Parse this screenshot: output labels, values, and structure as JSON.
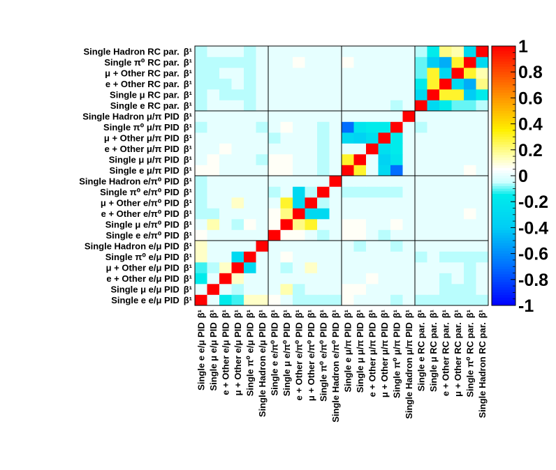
{
  "chart_data": {
    "type": "heatmap",
    "title": "",
    "xlabel": "",
    "ylabel": "",
    "zlim": [
      -1,
      1
    ],
    "colorbar_ticks": [
      "1",
      "0.8",
      "0.6",
      "0.4",
      "0.2",
      "0",
      "-0.2",
      "-0.4",
      "-0.6",
      "-0.8",
      "-1"
    ],
    "colorbar_tick_values": [
      1,
      0.8,
      0.6,
      0.4,
      0.2,
      0,
      -0.2,
      -0.4,
      -0.6,
      -0.8,
      -1
    ],
    "labels": [
      {
        "name": "Single e e/μ PID",
        "param": "β¹"
      },
      {
        "name": "Single μ e/μ PID",
        "param": "β¹"
      },
      {
        "name": "e + Other e/μ PID",
        "param": "β¹"
      },
      {
        "name": "μ + Other e/μ PID",
        "param": "β¹"
      },
      {
        "name": "Single π⁰ e/μ PID",
        "param": "β¹"
      },
      {
        "name": "Single Hadron e/μ PID",
        "param": "β¹"
      },
      {
        "name": "Single e e/π⁰ PID",
        "param": "β¹"
      },
      {
        "name": "Single μ e/π⁰ PID",
        "param": "β¹"
      },
      {
        "name": "e + Other e/π⁰ PID",
        "param": "β¹"
      },
      {
        "name": "μ + Other e/π⁰ PID",
        "param": "β¹"
      },
      {
        "name": "Single π⁰ e/π⁰ PID",
        "param": "β¹"
      },
      {
        "name": "Single Hadron e/π⁰ PID",
        "param": "β¹"
      },
      {
        "name": "Single e μ/π PID",
        "param": "β¹"
      },
      {
        "name": "Single μ μ/π PID",
        "param": "β¹"
      },
      {
        "name": "e + Other μ/π PID",
        "param": "β¹"
      },
      {
        "name": "μ + Other μ/π PID",
        "param": "β¹"
      },
      {
        "name": "Single π⁰ μ/π PID",
        "param": "β¹"
      },
      {
        "name": "Single Hadron μ/π PID",
        "param": "β¹"
      },
      {
        "name": "Single e RC par.",
        "param": "β¹"
      },
      {
        "name": "Single μ RC par.",
        "param": "β¹"
      },
      {
        "name": "e + Other RC par.",
        "param": "β¹"
      },
      {
        "name": "μ + Other RC par.",
        "param": "β¹"
      },
      {
        "name": "Single π⁰ RC par.",
        "param": "β¹"
      },
      {
        "name": "Single Hadron RC par.",
        "param": "β¹"
      }
    ],
    "group_boundaries": [
      6,
      12,
      18
    ],
    "values": [
      [
        1.0,
        0.0,
        -0.15,
        -0.12,
        0.12,
        0.12,
        0.06,
        0.0,
        -0.06,
        -0.06,
        -0.06,
        -0.06,
        0.06,
        0.0,
        0.0,
        0.0,
        -0.06,
        0.0,
        -0.06,
        -0.06,
        -0.06,
        -0.06,
        -0.06,
        -0.06
      ],
      [
        0.0,
        1.0,
        0.0,
        -0.06,
        0.0,
        0.0,
        0.0,
        0.15,
        -0.06,
        0.0,
        0.0,
        0.0,
        0.06,
        0.06,
        0.0,
        0.0,
        0.0,
        0.0,
        0.0,
        0.0,
        -0.06,
        -0.06,
        -0.06,
        0.0
      ],
      [
        -0.15,
        0.0,
        1.0,
        0.12,
        0.0,
        0.0,
        0.0,
        0.0,
        0.0,
        0.0,
        0.0,
        0.0,
        0.0,
        0.0,
        0.06,
        0.0,
        0.0,
        0.0,
        0.0,
        0.0,
        -0.06,
        0.0,
        -0.06,
        0.0
      ],
      [
        -0.12,
        -0.06,
        0.12,
        1.0,
        -0.3,
        0.0,
        0.0,
        -0.06,
        0.0,
        0.12,
        0.0,
        0.0,
        0.0,
        0.0,
        0.0,
        0.0,
        0.0,
        0.0,
        0.0,
        0.0,
        0.0,
        0.0,
        -0.06,
        0.0
      ],
      [
        0.12,
        0.0,
        0.0,
        -0.3,
        1.0,
        0.0,
        0.0,
        0.06,
        0.0,
        0.0,
        0.0,
        0.0,
        0.0,
        0.0,
        0.0,
        0.0,
        0.0,
        0.0,
        -0.06,
        0.0,
        -0.06,
        -0.06,
        -0.06,
        -0.06
      ],
      [
        0.12,
        0.0,
        0.0,
        0.0,
        0.0,
        1.0,
        0.0,
        0.0,
        0.0,
        0.0,
        0.0,
        0.0,
        0.0,
        -0.06,
        0.0,
        0.0,
        -0.06,
        0.0,
        0.0,
        0.0,
        0.0,
        0.0,
        0.0,
        0.0
      ],
      [
        0.06,
        0.0,
        0.0,
        0.0,
        0.0,
        0.0,
        1.0,
        0.06,
        0.06,
        0.0,
        -0.06,
        0.0,
        0.06,
        0.06,
        0.0,
        -0.06,
        0.0,
        0.0,
        0.0,
        0.0,
        0.0,
        0.0,
        0.0,
        0.0
      ],
      [
        0.0,
        0.15,
        0.0,
        -0.06,
        0.06,
        0.0,
        0.06,
        1.0,
        0.2,
        0.3,
        0.0,
        0.0,
        0.06,
        0.06,
        0.0,
        0.0,
        0.06,
        0.0,
        0.0,
        0.0,
        0.0,
        0.0,
        0.0,
        0.0
      ],
      [
        -0.06,
        -0.06,
        0.0,
        0.0,
        0.0,
        0.0,
        0.06,
        0.2,
        1.0,
        -0.3,
        -0.3,
        0.0,
        0.0,
        0.0,
        0.0,
        0.0,
        0.0,
        0.0,
        0.0,
        0.0,
        0.0,
        0.0,
        0.06,
        0.0
      ],
      [
        -0.06,
        0.0,
        0.0,
        0.12,
        0.0,
        0.0,
        0.0,
        0.3,
        -0.3,
        1.0,
        -0.06,
        0.0,
        0.0,
        0.0,
        0.0,
        0.0,
        0.0,
        0.0,
        0.0,
        0.0,
        0.0,
        0.0,
        0.0,
        0.0
      ],
      [
        -0.06,
        0.0,
        0.0,
        0.0,
        0.0,
        0.0,
        -0.06,
        0.0,
        -0.3,
        -0.06,
        1.0,
        0.0,
        -0.06,
        -0.06,
        -0.06,
        -0.06,
        -0.06,
        0.0,
        0.0,
        0.0,
        0.0,
        0.0,
        0.0,
        0.0
      ],
      [
        -0.06,
        0.0,
        0.0,
        0.0,
        0.0,
        0.0,
        0.0,
        0.0,
        0.0,
        0.0,
        0.0,
        1.0,
        0.0,
        0.0,
        0.0,
        0.0,
        0.0,
        0.0,
        0.0,
        0.0,
        0.0,
        0.0,
        0.0,
        0.0
      ],
      [
        0.06,
        0.06,
        0.0,
        0.0,
        0.0,
        0.0,
        0.06,
        0.06,
        0.0,
        0.0,
        -0.06,
        0.0,
        1.0,
        0.3,
        0.0,
        -0.3,
        -0.7,
        0.0,
        0.0,
        0.0,
        0.0,
        0.0,
        0.06,
        0.0
      ],
      [
        0.0,
        0.06,
        0.0,
        0.0,
        0.0,
        -0.06,
        0.06,
        0.06,
        0.0,
        0.0,
        -0.06,
        0.0,
        0.3,
        1.0,
        0.0,
        -0.35,
        -0.2,
        0.0,
        0.0,
        0.0,
        0.0,
        0.0,
        0.0,
        0.0
      ],
      [
        0.0,
        0.0,
        0.06,
        0.0,
        0.0,
        0.0,
        0.0,
        0.0,
        0.0,
        0.0,
        -0.06,
        0.0,
        0.0,
        0.0,
        1.0,
        -0.25,
        -0.15,
        0.0,
        0.0,
        0.0,
        0.0,
        0.0,
        0.0,
        0.0
      ],
      [
        0.0,
        0.0,
        0.0,
        0.0,
        0.0,
        0.0,
        -0.06,
        0.0,
        0.0,
        0.0,
        -0.06,
        0.0,
        -0.3,
        -0.35,
        -0.25,
        1.0,
        -0.15,
        0.0,
        0.0,
        0.0,
        0.0,
        0.0,
        0.0,
        0.0
      ],
      [
        -0.06,
        0.0,
        0.0,
        0.0,
        0.0,
        -0.06,
        0.0,
        0.06,
        0.0,
        0.0,
        -0.06,
        0.0,
        -0.7,
        -0.2,
        -0.15,
        -0.15,
        1.0,
        0.0,
        -0.06,
        0.0,
        0.0,
        0.0,
        0.0,
        0.0
      ],
      [
        0.0,
        0.0,
        0.0,
        0.0,
        0.0,
        0.0,
        0.0,
        0.0,
        0.0,
        0.0,
        0.0,
        0.0,
        0.0,
        0.0,
        0.0,
        0.0,
        0.0,
        1.0,
        0.0,
        0.0,
        0.0,
        0.0,
        0.0,
        0.0
      ],
      [
        -0.06,
        0.0,
        0.0,
        0.0,
        -0.06,
        0.0,
        0.0,
        0.0,
        0.0,
        0.0,
        0.0,
        0.0,
        0.0,
        0.0,
        0.0,
        0.0,
        -0.06,
        0.0,
        1.0,
        -0.3,
        -0.15,
        -0.1,
        -0.1,
        -0.06
      ],
      [
        -0.06,
        0.0,
        -0.06,
        -0.06,
        -0.06,
        0.0,
        0.0,
        0.0,
        0.0,
        0.0,
        0.0,
        0.0,
        0.0,
        0.0,
        0.0,
        0.0,
        0.0,
        0.0,
        -0.3,
        1.0,
        0.3,
        0.3,
        -0.4,
        -0.15
      ],
      [
        -0.06,
        -0.06,
        -0.06,
        0.0,
        -0.06,
        0.0,
        0.0,
        0.0,
        0.0,
        0.0,
        0.0,
        0.0,
        0.0,
        0.0,
        0.0,
        0.0,
        0.0,
        0.0,
        -0.15,
        0.3,
        1.0,
        -0.3,
        -0.5,
        0.2
      ],
      [
        -0.06,
        -0.06,
        0.0,
        0.0,
        -0.06,
        0.0,
        0.0,
        0.0,
        0.0,
        0.0,
        0.0,
        0.0,
        0.0,
        0.0,
        0.0,
        0.0,
        0.0,
        0.0,
        -0.1,
        0.3,
        -0.3,
        1.0,
        0.3,
        0.15
      ],
      [
        -0.06,
        -0.06,
        -0.06,
        -0.06,
        -0.06,
        0.0,
        0.0,
        0.0,
        0.06,
        0.0,
        0.0,
        0.0,
        0.06,
        0.0,
        0.0,
        0.0,
        0.0,
        0.0,
        -0.1,
        -0.4,
        -0.5,
        0.3,
        1.0,
        -0.3
      ],
      [
        -0.06,
        0.0,
        0.0,
        0.0,
        -0.06,
        0.0,
        0.0,
        0.0,
        0.0,
        0.0,
        0.0,
        0.0,
        0.0,
        0.0,
        0.0,
        0.0,
        0.0,
        0.0,
        -0.06,
        -0.15,
        0.2,
        0.15,
        -0.3,
        1.0
      ]
    ]
  }
}
